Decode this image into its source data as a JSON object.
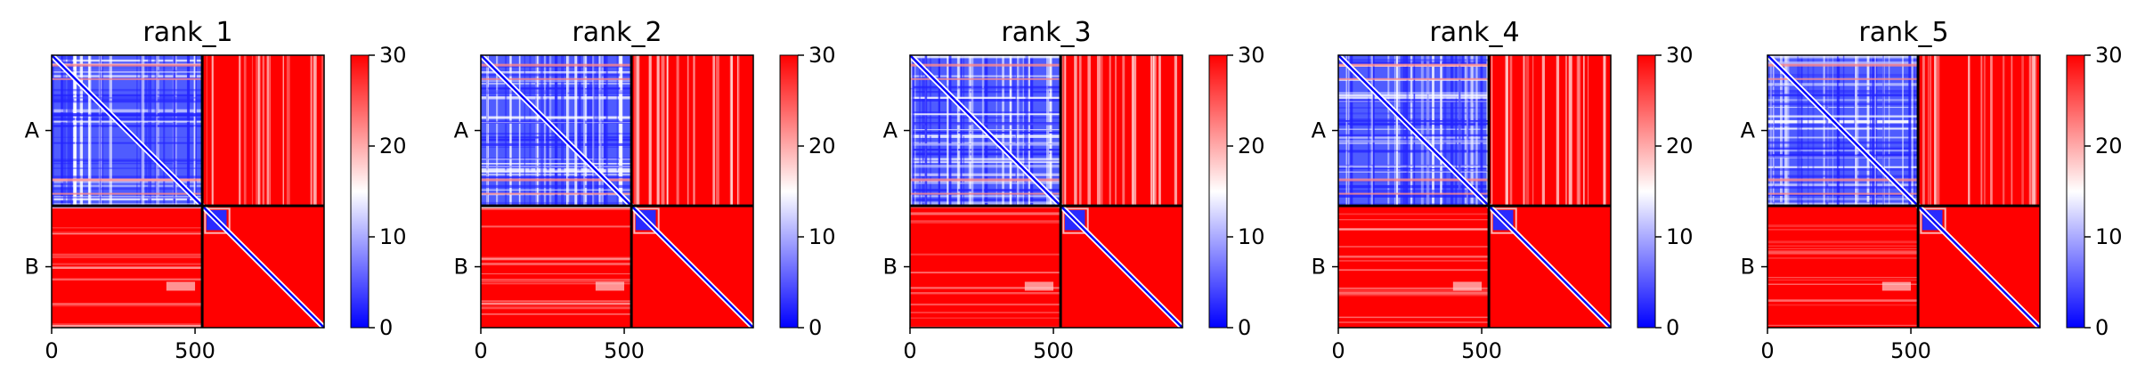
{
  "chart_data": [
    {
      "type": "heatmap",
      "title": "rank_1",
      "chains": [
        "A",
        "B"
      ],
      "chain_boundary": 525,
      "length": 950,
      "xticks": [
        0,
        500
      ],
      "colorbar": {
        "min": 0,
        "max": 30,
        "ticks": [
          0,
          10,
          20,
          30
        ]
      },
      "colormap": {
        "low": "#0000ff",
        "mid": "#ffffff",
        "high": "#ff0000"
      }
    },
    {
      "type": "heatmap",
      "title": "rank_2",
      "chains": [
        "A",
        "B"
      ],
      "chain_boundary": 525,
      "length": 950,
      "xticks": [
        0,
        500
      ],
      "colorbar": {
        "min": 0,
        "max": 30,
        "ticks": [
          0,
          10,
          20,
          30
        ]
      },
      "colormap": {
        "low": "#0000ff",
        "mid": "#ffffff",
        "high": "#ff0000"
      }
    },
    {
      "type": "heatmap",
      "title": "rank_3",
      "chains": [
        "A",
        "B"
      ],
      "chain_boundary": 525,
      "length": 950,
      "xticks": [
        0,
        500
      ],
      "colorbar": {
        "min": 0,
        "max": 30,
        "ticks": [
          0,
          10,
          20,
          30
        ]
      },
      "colormap": {
        "low": "#0000ff",
        "mid": "#ffffff",
        "high": "#ff0000"
      }
    },
    {
      "type": "heatmap",
      "title": "rank_4",
      "chains": [
        "A",
        "B"
      ],
      "chain_boundary": 525,
      "length": 950,
      "xticks": [
        0,
        500
      ],
      "colorbar": {
        "min": 0,
        "max": 30,
        "ticks": [
          0,
          10,
          20,
          30
        ]
      },
      "colormap": {
        "low": "#0000ff",
        "mid": "#ffffff",
        "high": "#ff0000"
      }
    },
    {
      "type": "heatmap",
      "title": "rank_5",
      "chains": [
        "A",
        "B"
      ],
      "chain_boundary": 525,
      "length": 950,
      "xticks": [
        0,
        500
      ],
      "colorbar": {
        "min": 0,
        "max": 30,
        "ticks": [
          0,
          10,
          20,
          30
        ]
      },
      "colormap": {
        "low": "#0000ff",
        "mid": "#ffffff",
        "high": "#ff0000"
      }
    }
  ]
}
